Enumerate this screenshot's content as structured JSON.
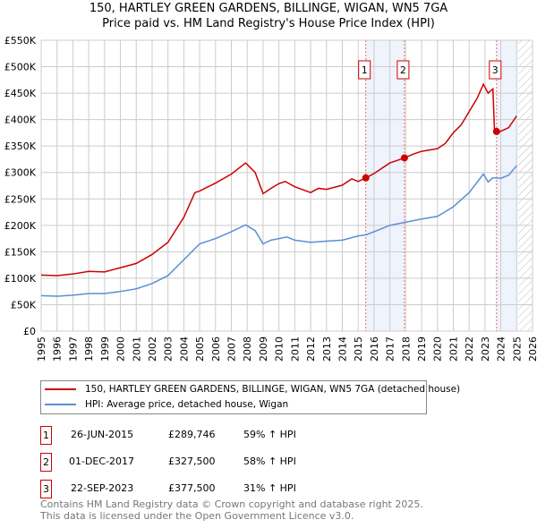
{
  "chart_data": {
    "type": "line",
    "title": "150, HARTLEY GREEN GARDENS, BILLINGE, WIGAN, WN5 7GA",
    "subtitle": "Price paid vs. HM Land Registry's House Price Index (HPI)",
    "xlim": [
      1995,
      2026
    ],
    "ylim": [
      0,
      550000
    ],
    "x_ticks": [
      "1995",
      "1996",
      "1997",
      "1998",
      "1999",
      "2000",
      "2001",
      "2002",
      "2003",
      "2004",
      "2005",
      "2006",
      "2007",
      "2008",
      "2009",
      "2010",
      "2011",
      "2012",
      "2013",
      "2014",
      "2015",
      "2016",
      "2017",
      "2018",
      "2019",
      "2020",
      "2021",
      "2022",
      "2023",
      "2024",
      "2025",
      "2026"
    ],
    "y_ticks": [
      {
        "v": 0,
        "l": "£0"
      },
      {
        "v": 50000,
        "l": "£50K"
      },
      {
        "v": 100000,
        "l": "£100K"
      },
      {
        "v": 150000,
        "l": "£150K"
      },
      {
        "v": 200000,
        "l": "£200K"
      },
      {
        "v": 250000,
        "l": "£250K"
      },
      {
        "v": 300000,
        "l": "£300K"
      },
      {
        "v": 350000,
        "l": "£350K"
      },
      {
        "v": 400000,
        "l": "£400K"
      },
      {
        "v": 450000,
        "l": "£450K"
      },
      {
        "v": 500000,
        "l": "£500K"
      },
      {
        "v": 550000,
        "l": "£550K"
      }
    ],
    "grid": true,
    "series": [
      {
        "name": "150, HARTLEY GREEN GARDENS, BILLINGE, WIGAN, WN5 7GA (detached house)",
        "color": "#cc0000",
        "x": [
          1995,
          1996,
          1997,
          1998,
          1999,
          2000,
          2001,
          2002,
          2003,
          2004,
          2004.7,
          2005,
          2006,
          2007,
          2007.9,
          2008.5,
          2009,
          2009.5,
          2010,
          2010.4,
          2011,
          2012,
          2012.5,
          2013,
          2014,
          2014.6,
          2015,
          2015.48,
          2016,
          2017,
          2017.92,
          2018.5,
          2019,
          2020,
          2020.5,
          2021,
          2021.5,
          2022,
          2022.5,
          2022.9,
          2023.2,
          2023.5,
          2023.6,
          2023.73,
          2024,
          2024.5,
          2025
        ],
        "y": [
          106000,
          105000,
          108000,
          113000,
          112000,
          120000,
          128000,
          145000,
          168000,
          215000,
          262000,
          265000,
          280000,
          297000,
          318000,
          300000,
          260000,
          270000,
          279000,
          283000,
          273000,
          262000,
          270000,
          268000,
          276000,
          288000,
          283000,
          289746,
          298000,
          318000,
          327500,
          335000,
          340000,
          345000,
          355000,
          375000,
          390000,
          415000,
          440000,
          467000,
          450000,
          458000,
          380000,
          377500,
          378000,
          385000,
          407000
        ]
      },
      {
        "name": "HPI: Average price, detached house, Wigan",
        "color": "#5b8fd4",
        "x": [
          1995,
          1996,
          1997,
          1998,
          1999,
          2000,
          2001,
          2002,
          2003,
          2004,
          2005,
          2006,
          2007,
          2007.9,
          2008.5,
          2009,
          2009.5,
          2010,
          2010.5,
          2011,
          2012,
          2013,
          2014,
          2015,
          2015.5,
          2016,
          2017,
          2018,
          2019,
          2020,
          2021,
          2022,
          2022.9,
          2023.2,
          2023.5,
          2024,
          2024.5,
          2025
        ],
        "y": [
          67000,
          66000,
          68000,
          71000,
          71000,
          75000,
          80000,
          90000,
          105000,
          135000,
          165000,
          175000,
          188000,
          201000,
          190000,
          165000,
          172000,
          175000,
          178000,
          172000,
          168000,
          170000,
          172000,
          180000,
          182000,
          188000,
          200000,
          206000,
          212000,
          217000,
          235000,
          262000,
          297000,
          282000,
          290000,
          289000,
          295000,
          313000
        ]
      }
    ],
    "sales": [
      {
        "n": "1",
        "x": 2015.48,
        "date": "26-JUN-2015",
        "price": "£289,746",
        "value": 289746,
        "hpi": "59% ↑ HPI"
      },
      {
        "n": "2",
        "x": 2017.92,
        "date": "01-DEC-2017",
        "price": "£327,500",
        "value": 327500,
        "hpi": "58% ↑ HPI"
      },
      {
        "n": "3",
        "x": 2023.73,
        "date": "22-SEP-2023",
        "price": "£377,500",
        "value": 377500,
        "hpi": "31% ↑ HPI"
      }
    ],
    "shaded": [
      [
        2015.48,
        2017.92
      ],
      [
        2023.73,
        2025.0
      ]
    ],
    "hatched_from": 2025.1
  },
  "footer": {
    "line1": "Contains HM Land Registry data © Crown copyright and database right 2025.",
    "line2": "This data is licensed under the Open Government Licence v3.0."
  }
}
